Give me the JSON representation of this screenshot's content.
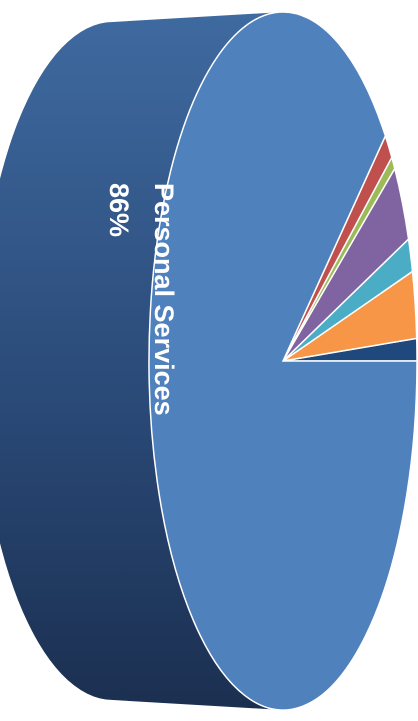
{
  "chart_data": {
    "type": "pie",
    "style": "3d-rotated",
    "label_orientation": "vertical",
    "slices": [
      {
        "name": "Personal Services",
        "percent": 86,
        "label": "86%",
        "color": "#4f81bd",
        "show_label": true
      },
      {
        "name": "",
        "percent": 1.0,
        "color": "#1f497d",
        "show_label": false
      },
      {
        "name": "",
        "percent": 3.0,
        "color": "#f79646",
        "show_label": false
      },
      {
        "name": "",
        "percent": 1.5,
        "color": "#4bacc6",
        "show_label": false
      },
      {
        "name": "",
        "percent": 3.5,
        "color": "#8064a2",
        "show_label": false
      },
      {
        "name": "",
        "percent": 0.6,
        "color": "#9bbb59",
        "show_label": false
      },
      {
        "name": "",
        "percent": 1.2,
        "color": "#c0504d",
        "show_label": false
      }
    ],
    "legend": "none",
    "title": ""
  }
}
